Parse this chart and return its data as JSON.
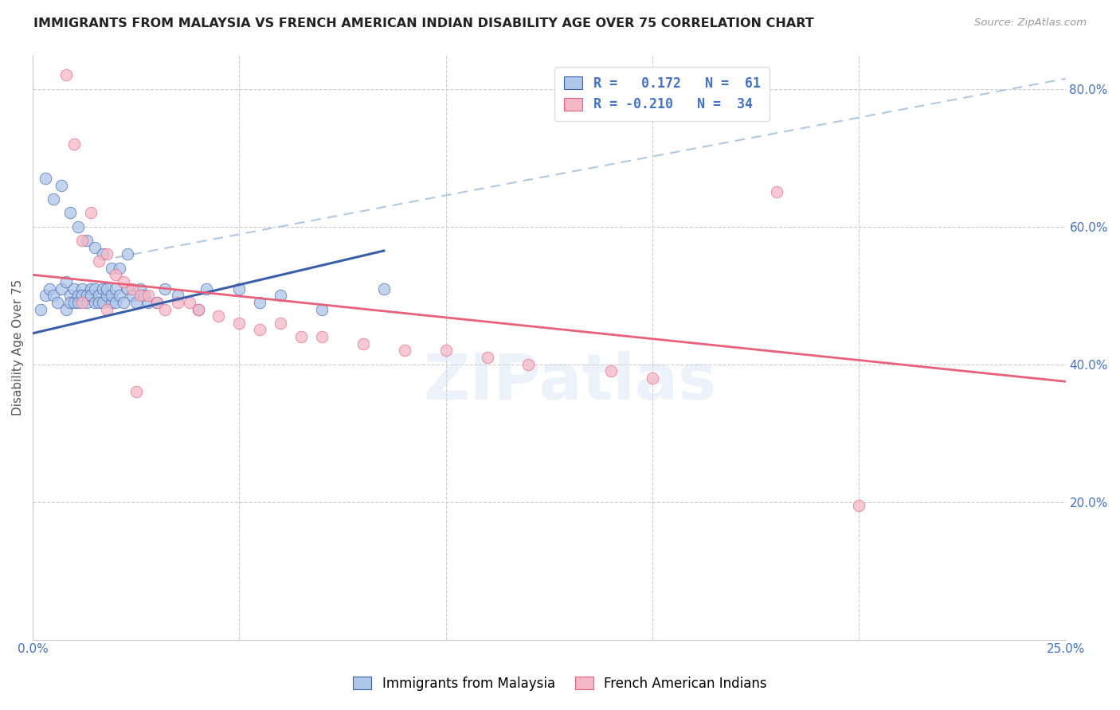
{
  "title": "IMMIGRANTS FROM MALAYSIA VS FRENCH AMERICAN INDIAN DISABILITY AGE OVER 75 CORRELATION CHART",
  "source": "Source: ZipAtlas.com",
  "ylabel": "Disability Age Over 75",
  "xlim": [
    0.0,
    0.25
  ],
  "ylim": [
    0.0,
    0.85
  ],
  "xtick_positions": [
    0.0,
    0.05,
    0.1,
    0.15,
    0.2,
    0.25
  ],
  "xtick_labels": [
    "0.0%",
    "",
    "",
    "",
    "",
    "25.0%"
  ],
  "ytick_positions": [
    0.0,
    0.2,
    0.4,
    0.6,
    0.8
  ],
  "ytick_labels": [
    "",
    "20.0%",
    "40.0%",
    "60.0%",
    "80.0%"
  ],
  "R1": 0.172,
  "N1": 61,
  "R2": -0.21,
  "N2": 34,
  "blue_face": "#aec6e8",
  "pink_face": "#f5b8c8",
  "line_blue": "#3a5eaa",
  "line_pink": "#e8607a",
  "line_dash_color": "#b0c8e0",
  "watermark": "ZIPatlas",
  "blue_line_x": [
    0.0,
    0.085
  ],
  "blue_line_y": [
    0.445,
    0.565
  ],
  "pink_line_x": [
    0.0,
    0.25
  ],
  "pink_line_y": [
    0.53,
    0.375
  ],
  "dash_line_x": [
    0.02,
    0.25
  ],
  "dash_line_y": [
    0.555,
    0.815
  ],
  "blue_scatter_x": [
    0.002,
    0.003,
    0.004,
    0.005,
    0.006,
    0.007,
    0.008,
    0.008,
    0.009,
    0.009,
    0.01,
    0.01,
    0.011,
    0.011,
    0.012,
    0.012,
    0.013,
    0.013,
    0.014,
    0.014,
    0.015,
    0.015,
    0.016,
    0.016,
    0.017,
    0.017,
    0.018,
    0.018,
    0.019,
    0.019,
    0.02,
    0.02,
    0.021,
    0.022,
    0.023,
    0.024,
    0.025,
    0.026,
    0.027,
    0.028,
    0.03,
    0.032,
    0.035,
    0.04,
    0.042,
    0.05,
    0.055,
    0.06,
    0.07,
    0.085,
    0.003,
    0.005,
    0.007,
    0.009,
    0.011,
    0.013,
    0.015,
    0.017,
    0.019,
    0.021,
    0.023
  ],
  "blue_scatter_y": [
    0.48,
    0.5,
    0.51,
    0.5,
    0.49,
    0.51,
    0.52,
    0.48,
    0.5,
    0.49,
    0.51,
    0.49,
    0.5,
    0.49,
    0.51,
    0.5,
    0.49,
    0.5,
    0.51,
    0.5,
    0.49,
    0.51,
    0.5,
    0.49,
    0.51,
    0.49,
    0.5,
    0.51,
    0.49,
    0.5,
    0.49,
    0.51,
    0.5,
    0.49,
    0.51,
    0.5,
    0.49,
    0.51,
    0.5,
    0.49,
    0.49,
    0.51,
    0.5,
    0.48,
    0.51,
    0.51,
    0.49,
    0.5,
    0.48,
    0.51,
    0.67,
    0.64,
    0.66,
    0.62,
    0.6,
    0.58,
    0.57,
    0.56,
    0.54,
    0.54,
    0.56
  ],
  "pink_scatter_x": [
    0.008,
    0.01,
    0.012,
    0.014,
    0.016,
    0.018,
    0.02,
    0.022,
    0.024,
    0.026,
    0.028,
    0.03,
    0.032,
    0.035,
    0.038,
    0.04,
    0.045,
    0.05,
    0.055,
    0.06,
    0.065,
    0.07,
    0.08,
    0.09,
    0.1,
    0.11,
    0.12,
    0.14,
    0.15,
    0.18,
    0.012,
    0.018,
    0.025,
    0.2
  ],
  "pink_scatter_y": [
    0.82,
    0.72,
    0.58,
    0.62,
    0.55,
    0.56,
    0.53,
    0.52,
    0.51,
    0.5,
    0.5,
    0.49,
    0.48,
    0.49,
    0.49,
    0.48,
    0.47,
    0.46,
    0.45,
    0.46,
    0.44,
    0.44,
    0.43,
    0.42,
    0.42,
    0.41,
    0.4,
    0.39,
    0.38,
    0.65,
    0.49,
    0.48,
    0.36,
    0.195
  ]
}
